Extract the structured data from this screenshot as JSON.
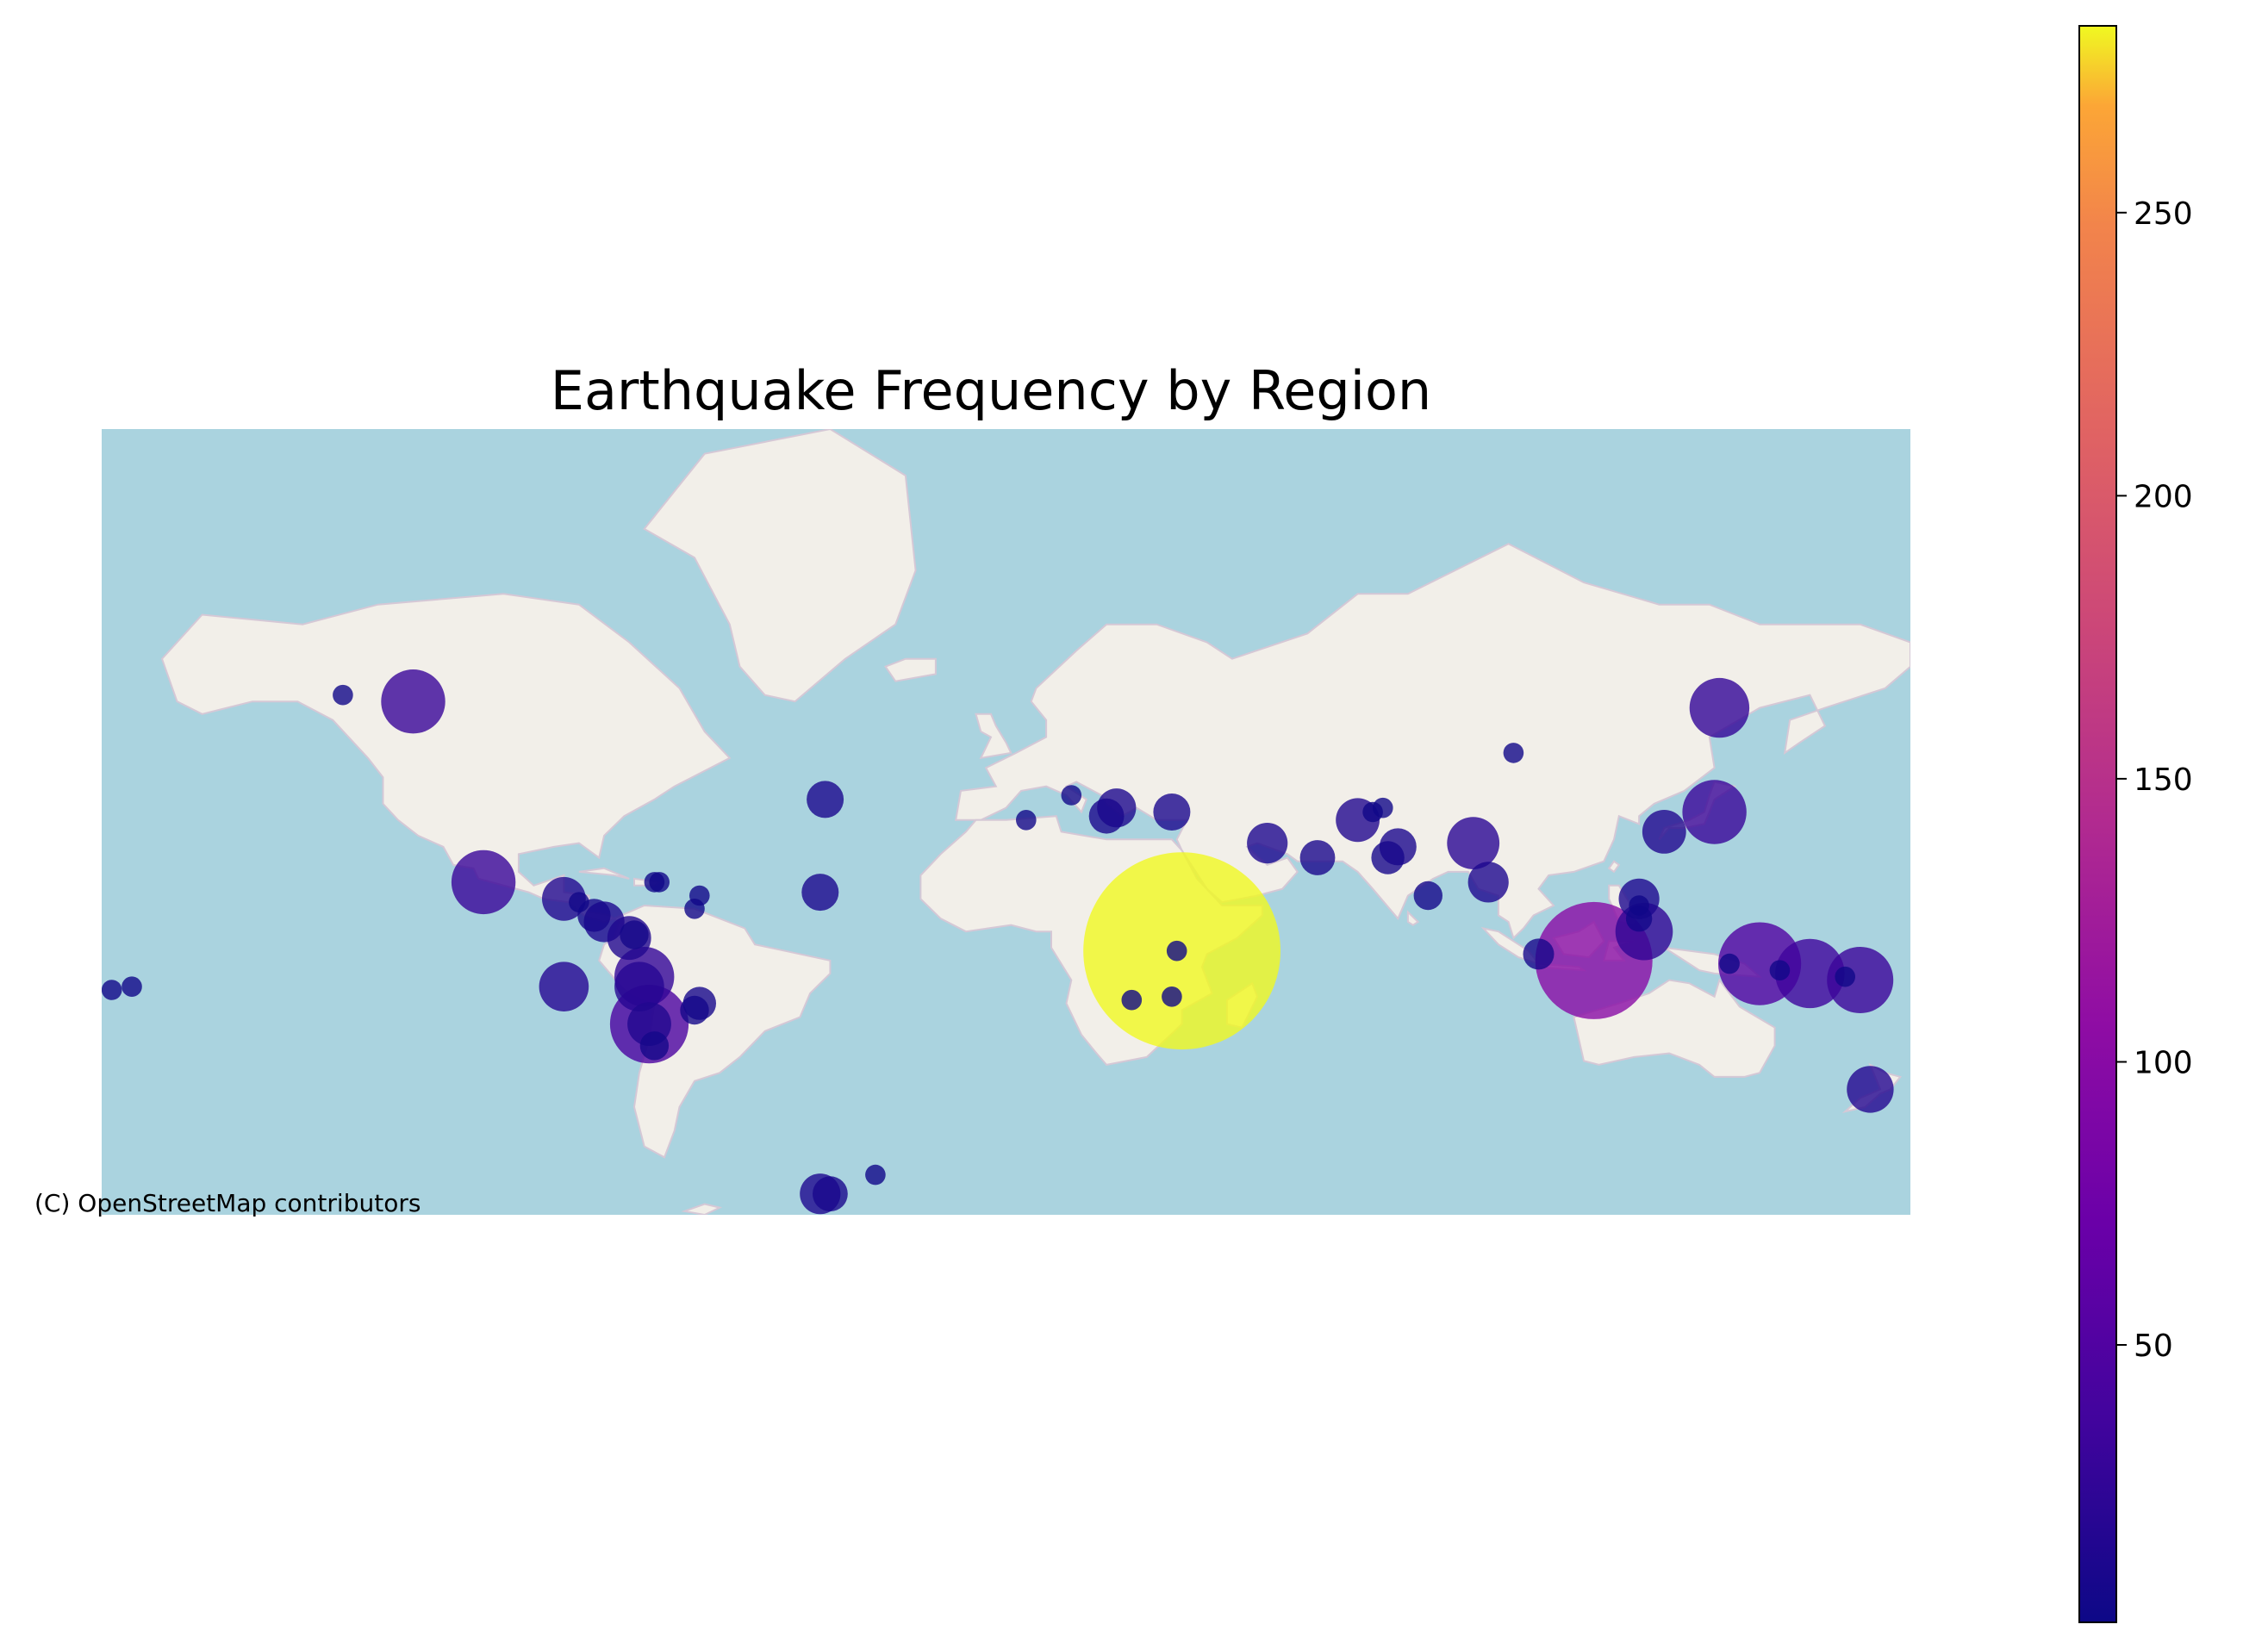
{
  "chart_data": {
    "type": "scatter",
    "title": "Earthquake Frequency by Region",
    "attribution": "(C) OpenStreetMap contributors",
    "xlabel": "",
    "ylabel": "",
    "map_extent": {
      "lon": [
        -180,
        180
      ],
      "lat": [
        -64,
        83
      ]
    },
    "basemap": "OpenStreetMap",
    "colormap": "plasma",
    "colorbar": {
      "range": [
        1,
        283
      ],
      "ticks": [
        50,
        100,
        150,
        200,
        250
      ]
    },
    "axes_visible": false,
    "points": [
      {
        "lon": 35,
        "lat": -2,
        "count": 283
      },
      {
        "lon": 117,
        "lat": -5,
        "count": 100
      },
      {
        "lon": 150,
        "lat": -6,
        "count": 50
      },
      {
        "lon": -71,
        "lat": -24,
        "count": 45
      },
      {
        "lon": 160,
        "lat": -9,
        "count": 35
      },
      {
        "lon": 170,
        "lat": -11,
        "count": 32
      },
      {
        "lon": -104,
        "lat": 19,
        "count": 30
      },
      {
        "lon": -118,
        "lat": 60,
        "count": 30
      },
      {
        "lon": 141,
        "lat": 38,
        "count": 30
      },
      {
        "lon": 142,
        "lat": 59,
        "count": 26
      },
      {
        "lon": -72,
        "lat": -10,
        "count": 26
      },
      {
        "lon": 127,
        "lat": 4,
        "count": 24
      },
      {
        "lon": -88,
        "lat": -13,
        "count": 18
      },
      {
        "lon": -73,
        "lat": -13,
        "count": 18
      },
      {
        "lon": 93,
        "lat": 30,
        "count": 20
      },
      {
        "lon": 172,
        "lat": -41,
        "count": 16
      },
      {
        "lon": -71,
        "lat": -24,
        "count": 14
      },
      {
        "lon": 131,
        "lat": 33,
        "count": 14
      },
      {
        "lon": -36,
        "lat": 41,
        "count": 10
      },
      {
        "lon": 22,
        "lat": 39,
        "count": 11
      },
      {
        "lon": 33,
        "lat": 38,
        "count": 10
      },
      {
        "lon": 52,
        "lat": 30,
        "count": 12
      },
      {
        "lon": 70,
        "lat": 36,
        "count": 14
      },
      {
        "lon": -88,
        "lat": 14,
        "count": 14
      },
      {
        "lon": -80,
        "lat": 7,
        "count": 12
      },
      {
        "lon": -75,
        "lat": 2,
        "count": 14
      },
      {
        "lon": 96,
        "lat": 19,
        "count": 12
      },
      {
        "lon": 126,
        "lat": 14,
        "count": 12
      },
      {
        "lon": -37,
        "lat": 16,
        "count": 10
      },
      {
        "lon": 20,
        "lat": 37,
        "count": 9
      },
      {
        "lon": 62,
        "lat": 26,
        "count": 9
      },
      {
        "lon": 78,
        "lat": 29,
        "count": 10
      },
      {
        "lon": 76,
        "lat": 26,
        "count": 8
      },
      {
        "lon": -82,
        "lat": 9,
        "count": 8
      },
      {
        "lon": -70,
        "lat": -30,
        "count": 6
      },
      {
        "lon": 84,
        "lat": 15,
        "count": 6
      },
      {
        "lon": -74,
        "lat": 3,
        "count": 6
      },
      {
        "lon": -61,
        "lat": -18,
        "count": 8
      },
      {
        "lon": -37,
        "lat": -61,
        "count": 12
      },
      {
        "lon": -35,
        "lat": -61,
        "count": 9
      },
      {
        "lon": 106,
        "lat": -3,
        "count": 7
      },
      {
        "lon": -62,
        "lat": -20,
        "count": 6
      },
      {
        "lon": 126,
        "lat": 8,
        "count": 5
      },
      {
        "lon": 144,
        "lat": -6,
        "count": 3
      },
      {
        "lon": 154,
        "lat": -8,
        "count": 3
      },
      {
        "lon": 167,
        "lat": -10,
        "count": 3
      },
      {
        "lon": -132,
        "lat": 61,
        "count": 3
      },
      {
        "lon": -85,
        "lat": 13,
        "count": 3
      },
      {
        "lon": -69,
        "lat": 19,
        "count": 3
      },
      {
        "lon": -70,
        "lat": 19,
        "count": 3
      },
      {
        "lon": -61,
        "lat": 15,
        "count": 3
      },
      {
        "lon": -62,
        "lat": 11,
        "count": 3
      },
      {
        "lon": -178,
        "lat": -14,
        "count": 3
      },
      {
        "lon": -174,
        "lat": -13,
        "count": 3
      },
      {
        "lon": -26,
        "lat": -58,
        "count": 3
      },
      {
        "lon": 4,
        "lat": 36,
        "count": 3
      },
      {
        "lon": 13,
        "lat": 42,
        "count": 3
      },
      {
        "lon": 25,
        "lat": -17,
        "count": 3
      },
      {
        "lon": 33,
        "lat": -16,
        "count": 3
      },
      {
        "lon": 101,
        "lat": 51,
        "count": 3
      },
      {
        "lon": 73,
        "lat": 38,
        "count": 3
      },
      {
        "lon": 75,
        "lat": 39,
        "count": 3
      },
      {
        "lon": 126,
        "lat": 12,
        "count": 3
      },
      {
        "lon": 34,
        "lat": -2,
        "count": 3
      }
    ]
  }
}
